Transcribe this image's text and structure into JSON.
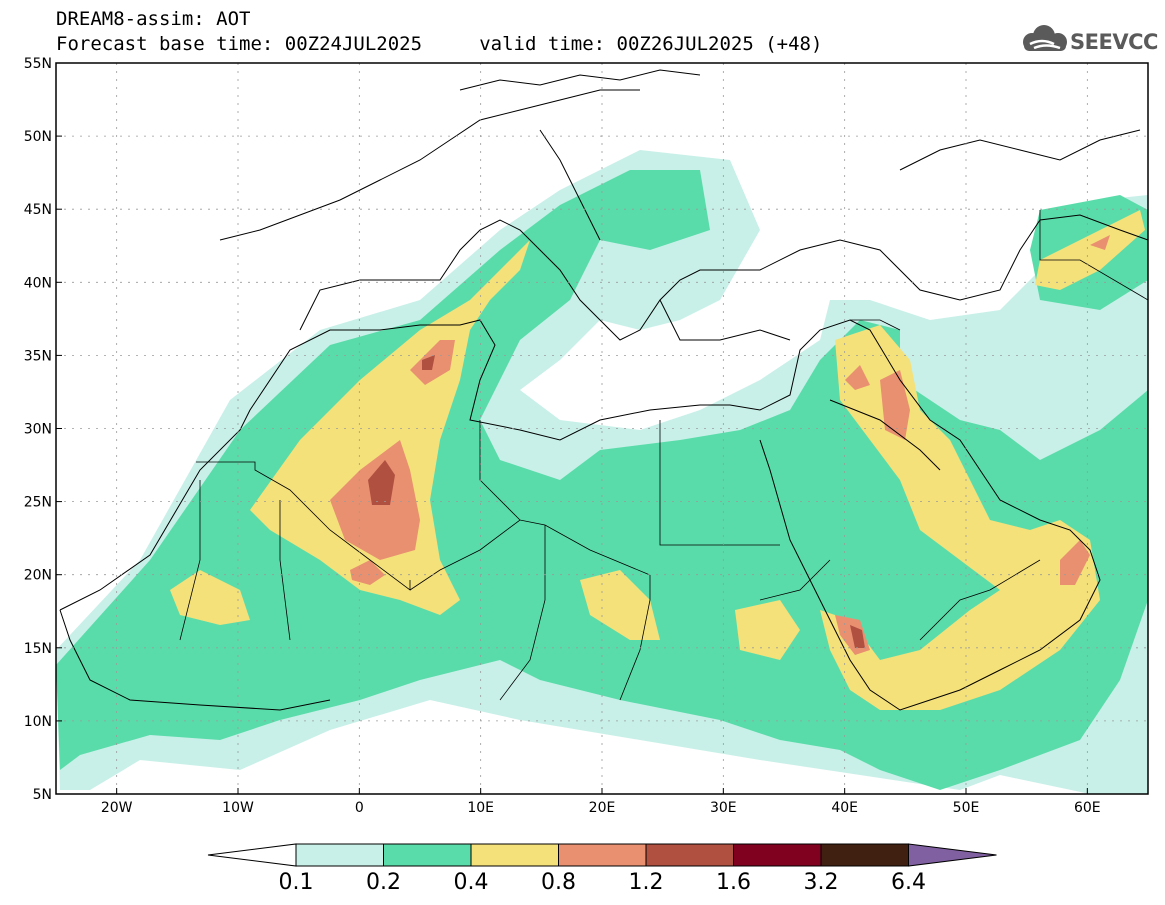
{
  "header": {
    "title": "DREAM8-assim: AOT",
    "subtitle": "Forecast base time: 00Z24JUL2025     valid time: 00Z26JUL2025 (+48)"
  },
  "logo": {
    "text": "SEEVCCC"
  },
  "map": {
    "lon_range": [
      -25,
      65
    ],
    "lat_range": [
      5,
      55
    ],
    "lon_ticks": [
      "20W",
      "10W",
      "0",
      "10E",
      "20E",
      "30E",
      "40E",
      "50E",
      "60E"
    ],
    "lat_ticks": [
      "5N",
      "10N",
      "15N",
      "20N",
      "25N",
      "30N",
      "35N",
      "40N",
      "45N",
      "50N",
      "55N"
    ],
    "grid": true
  },
  "colorbar": {
    "labels": [
      "0.1",
      "0.2",
      "0.4",
      "0.8",
      "1.2",
      "1.6",
      "3.2",
      "6.4"
    ],
    "colors": [
      "#c8f0e8",
      "#5adcaa",
      "#f5e17a",
      "#e89070",
      "#b05040",
      "#800020",
      "#402010",
      "#8060a0"
    ]
  }
}
